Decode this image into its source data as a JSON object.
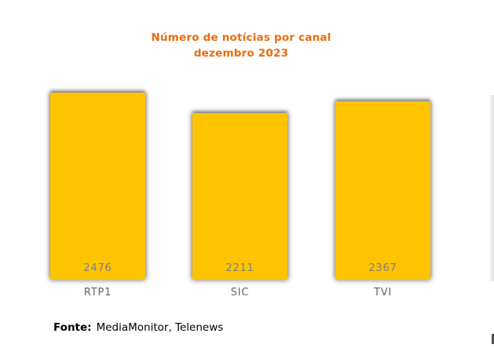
{
  "chart_data": {
    "type": "bar",
    "title": "Número de notícias por canal",
    "subtitle": "dezembro 2023",
    "categories": [
      "RTP1",
      "SIC",
      "TVI"
    ],
    "values": [
      2476,
      2211,
      2367
    ],
    "ylim": [
      0,
      2500
    ],
    "grid": false,
    "legend_position": "none",
    "data_label_position": "inside-base",
    "bar_color": "#FFC400",
    "title_color": "#ED6B0C",
    "value_label_color": "#7F7F7F",
    "category_label_color": "#666666"
  },
  "source": {
    "prefix": "Fonte:",
    "text": "MediaMonitor, Telenews"
  }
}
